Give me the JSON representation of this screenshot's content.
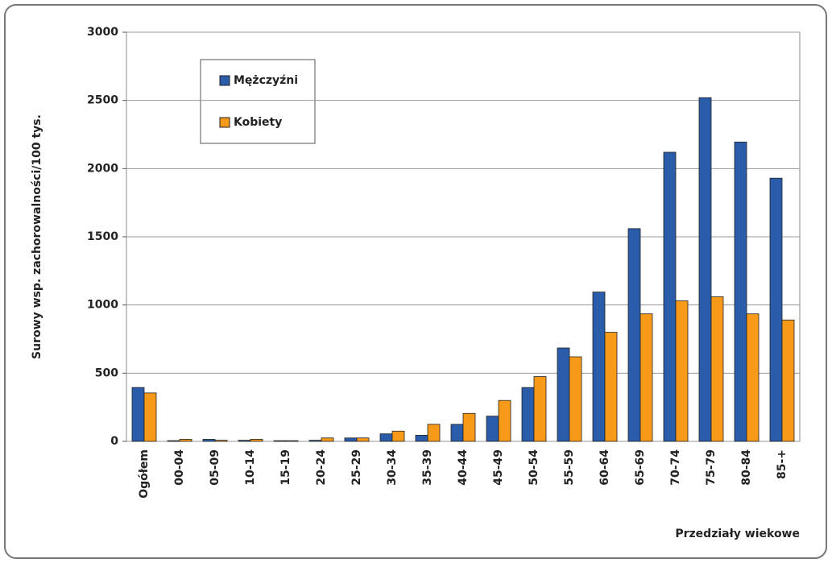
{
  "chart_data": {
    "type": "bar",
    "y_label": "Surowy wsp. zachorowalności/100 tys.",
    "x_label": "Przedziały wiekowe",
    "categories": [
      "Ogółem",
      "00-04",
      "05-09",
      "10-14",
      "15-19",
      "20-24",
      "25-29",
      "30-34",
      "35-39",
      "40-44",
      "45-49",
      "50-54",
      "55-59",
      "60-64",
      "65-69",
      "70-74",
      "75-79",
      "80-84",
      "85-+"
    ],
    "series": [
      {
        "name": "Mężczyźni",
        "color": "#2a5caa",
        "values": [
          395,
          5,
          15,
          8,
          5,
          8,
          25,
          55,
          45,
          125,
          185,
          395,
          685,
          1095,
          1560,
          2120,
          2520,
          2195,
          1930
        ]
      },
      {
        "name": "Kobiety",
        "color": "#f79a1a",
        "values": [
          355,
          15,
          8,
          15,
          5,
          25,
          25,
          75,
          125,
          205,
          300,
          475,
          620,
          800,
          935,
          1030,
          1060,
          935,
          890
        ]
      }
    ],
    "ylim": [
      0,
      3000
    ],
    "yticks": [
      0,
      500,
      1000,
      1500,
      2000,
      2500,
      3000
    ],
    "grid": true
  }
}
